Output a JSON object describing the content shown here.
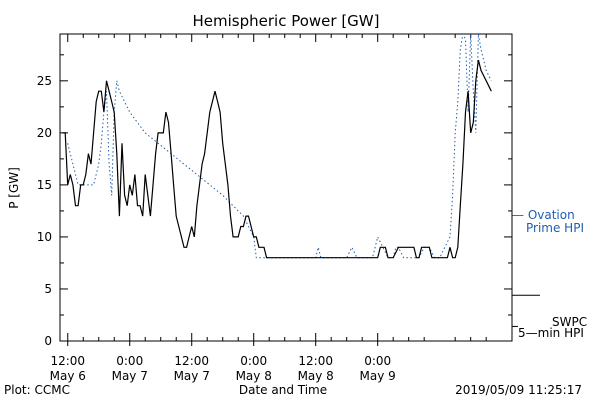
{
  "chart_data": {
    "type": "line",
    "title": "Hemispheric Power [GW]",
    "xlabel": "Date and Time",
    "ylabel": "P [GW]",
    "ylim": [
      0,
      29.5
    ],
    "xlim_hours": [
      0,
      86
    ],
    "yticks": [
      0,
      5,
      10,
      15,
      20,
      25
    ],
    "xticks": [
      {
        "h": 0,
        "time": "12:00",
        "date": "May 6"
      },
      {
        "h": 12,
        "time": "0:00",
        "date": "May 7"
      },
      {
        "h": 24,
        "time": "12:00",
        "date": "May 7"
      },
      {
        "h": 36,
        "time": "0:00",
        "date": "May 8"
      },
      {
        "h": 48,
        "time": "12:00",
        "date": "May 8"
      },
      {
        "h": 60,
        "time": "0:00",
        "date": "May 9"
      }
    ],
    "series": [
      {
        "name": "SWPC 5-min HPI",
        "label_lines": [
          "SWPC",
          "5—min HPI"
        ],
        "color": "#000000",
        "x": [
          -1,
          -0.5,
          0,
          0.5,
          1,
          1.5,
          2,
          2.5,
          3,
          3.5,
          4,
          4.5,
          5,
          5.5,
          6,
          6.5,
          7,
          7.5,
          8,
          8.5,
          9,
          9.5,
          10,
          10.5,
          11,
          11.5,
          12,
          12.5,
          13,
          13.5,
          14,
          14.5,
          15,
          15.5,
          16,
          16.5,
          17,
          17.5,
          18,
          18.5,
          19,
          19.5,
          20,
          20.5,
          21,
          21.5,
          22,
          22.5,
          23,
          23.5,
          24,
          24.5,
          25,
          25.5,
          26,
          26.5,
          27,
          27.5,
          28,
          28.5,
          29,
          29.5,
          30,
          30.5,
          31,
          31.5,
          32,
          32.5,
          33,
          33.5,
          34,
          34.5,
          35,
          35.5,
          36,
          36.5,
          37,
          37.5,
          38,
          38.5,
          39,
          39.5,
          40,
          45,
          50,
          55,
          60,
          60.5,
          61,
          61.5,
          62,
          63,
          64,
          65,
          66,
          67,
          67.5,
          68,
          68.5,
          69,
          69.5,
          70,
          70.5,
          71,
          71.5,
          72,
          72.5,
          73,
          73.5,
          74,
          74.5,
          75,
          75.5,
          76,
          76.5,
          77,
          77.5,
          78,
          78.5,
          79,
          79.5,
          80,
          81,
          82
        ],
        "y": [
          20,
          20,
          15,
          16,
          15,
          13,
          13,
          15,
          15,
          16,
          18,
          17,
          20,
          23,
          24,
          24,
          22,
          25,
          24,
          23,
          22,
          18,
          12,
          19,
          14,
          13,
          15,
          14,
          16,
          13,
          13,
          12,
          16,
          14,
          12,
          15,
          18,
          20,
          20,
          20,
          22,
          21,
          18,
          15,
          12,
          11,
          10,
          9,
          9,
          10,
          11,
          10,
          13,
          15,
          17,
          18,
          20,
          22,
          23,
          24,
          23,
          22,
          19,
          17,
          15,
          12,
          10,
          10,
          10,
          11,
          11,
          12,
          12,
          11,
          10,
          10,
          9,
          9,
          9,
          8,
          8,
          8,
          8,
          8,
          8,
          8,
          8,
          9,
          9,
          9,
          8,
          8,
          9,
          9,
          9,
          9,
          8,
          8,
          9,
          9,
          9,
          9,
          8,
          8,
          8,
          8,
          8,
          8,
          8,
          9,
          8,
          8,
          9,
          13,
          17,
          22,
          24,
          20,
          21,
          25,
          27,
          26,
          25,
          24
        ]
      },
      {
        "name": "Ovation Prime HPI",
        "label_lines": [
          "— Ovation",
          "Prime HPI"
        ],
        "color": "#1f5fb0",
        "x": [
          0,
          1,
          2,
          3,
          4,
          5,
          6,
          6.5,
          7,
          7.5,
          8,
          8.5,
          9,
          9.5,
          10,
          12,
          15,
          20,
          25,
          30,
          34,
          36,
          36.5,
          38,
          40,
          45,
          48,
          48.5,
          49,
          52,
          54,
          55,
          56,
          58,
          59,
          60,
          61,
          62,
          63,
          63.5,
          64,
          65,
          66,
          67,
          68,
          69,
          70,
          71,
          72,
          73,
          74,
          74.5,
          75,
          75.5,
          76,
          76.5,
          77,
          77.5,
          78,
          78.5,
          79,
          79.5,
          80,
          81,
          82
        ],
        "y": [
          19,
          17,
          15,
          15,
          15,
          15,
          17,
          19,
          22,
          24,
          17,
          14,
          22,
          25,
          24,
          22,
          20,
          18,
          16,
          14,
          12,
          10,
          8,
          8,
          8,
          8,
          8,
          9,
          8,
          8,
          8,
          9,
          8,
          8,
          8,
          10,
          9,
          8,
          8,
          9,
          9,
          8,
          8,
          8,
          8,
          9,
          9,
          8,
          8,
          9,
          10,
          14,
          20,
          23,
          28,
          30,
          29,
          22,
          30,
          24,
          20,
          30,
          28,
          26,
          25
        ]
      }
    ],
    "footer_left": "Plot: CCMC",
    "footer_right": "2019/05/09 11:25:17"
  }
}
